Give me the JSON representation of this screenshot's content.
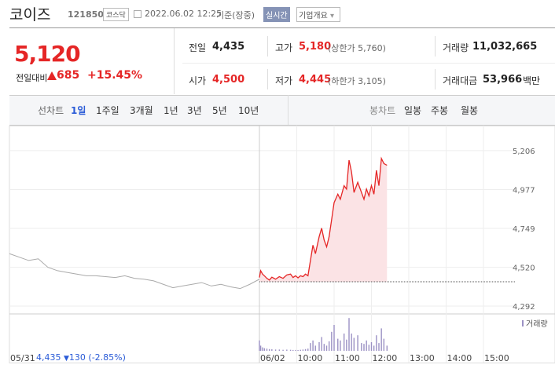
{
  "header": {
    "name": "코이즈",
    "code": "121850",
    "market": "코스닥",
    "datetime": "2022.06.02 12:25",
    "basis": "기준(장중)",
    "realtime": "실시간",
    "company": "기업개요"
  },
  "quote": {
    "price": "5,120",
    "change_label": "전일대비",
    "change": "685",
    "rate": "+15.45%"
  },
  "info": [
    {
      "label": "전일",
      "value": "4,435"
    },
    {
      "label": "고가",
      "value": "5,180",
      "note": "(상한가 5,760)"
    },
    {
      "label": "거래량",
      "value": "11,032,665"
    },
    {
      "label": "시가",
      "value": "4,500"
    },
    {
      "label": "저가",
      "value": "4,445",
      "note": "(하한가 3,105)"
    },
    {
      "label": "거래대금",
      "value": "53,966",
      "note": "백만"
    }
  ],
  "tabs": {
    "line_label": "선차트",
    "line": [
      "1일",
      "1주일",
      "3개월",
      "1년",
      "3년",
      "5년",
      "10년"
    ],
    "candle_label": "봉차트",
    "candle": [
      "일봉",
      "주봉",
      "월봉"
    ]
  },
  "footer": {
    "price": "4,435",
    "change": "130",
    "rate": "(-2.85%)"
  },
  "chart_data": {
    "type": "line",
    "xlim": [
      0,
      1170
    ],
    "ylim": [
      4255,
      5298
    ],
    "yticks": [
      {
        "value": 5206,
        "label": "5,206"
      },
      {
        "value": 4977,
        "label": "4,977"
      },
      {
        "value": 4749,
        "label": "4,749"
      },
      {
        "value": 4520,
        "label": "4,520"
      },
      {
        "value": 4292,
        "label": "4,292"
      }
    ],
    "xticks": [
      {
        "value": 0,
        "label": "05/31"
      },
      {
        "value": 780,
        "label": "06/02"
      },
      {
        "value": 840,
        "label": "10:00"
      },
      {
        "value": 900,
        "label": "11:00"
      },
      {
        "value": 960,
        "label": "12:00"
      },
      {
        "value": 1020,
        "label": "13:00"
      },
      {
        "value": 1080,
        "label": "14:00"
      },
      {
        "value": 1140,
        "label": "15:00"
      }
    ],
    "previous_close": 4435,
    "volume_label": "거래량",
    "vlim": [
      0,
      400000
    ],
    "series": [
      {
        "color": "#aaaaaa",
        "x": [
          0,
          30,
          60,
          90,
          120,
          150,
          180,
          210,
          240,
          270,
          300,
          330,
          360,
          390,
          420,
          450,
          480,
          510,
          540,
          570,
          600,
          630,
          660,
          690,
          720,
          750,
          780
        ],
        "values": [
          4600,
          4580,
          4560,
          4570,
          4520,
          4500,
          4490,
          4480,
          4470,
          4470,
          4465,
          4460,
          4470,
          4455,
          4450,
          4440,
          4420,
          4400,
          4410,
          4420,
          4430,
          4410,
          4420,
          4405,
          4395,
          4420,
          4450
        ]
      },
      {
        "color": "#e52626",
        "fill": "#fbe3e5",
        "volume_color": "#9b91c4",
        "x": [
          780,
          782,
          785,
          788,
          792,
          796,
          800,
          806,
          812,
          818,
          824,
          830,
          834,
          838,
          842,
          846,
          850,
          854,
          858,
          862,
          866,
          870,
          876,
          880,
          884,
          888,
          892,
          896,
          900,
          906,
          910,
          916,
          920,
          924,
          928,
          932,
          938,
          944,
          948,
          952,
          956,
          960,
          964,
          968,
          972,
          976,
          980,
          985
        ],
        "values": [
          4460,
          4500,
          4480,
          4470,
          4455,
          4445,
          4462,
          4450,
          4465,
          4455,
          4475,
          4480,
          4460,
          4470,
          4458,
          4470,
          4465,
          4480,
          4470,
          4560,
          4650,
          4600,
          4700,
          4750,
          4680,
          4640,
          4700,
          4800,
          4900,
          4950,
          4920,
          5000,
          4980,
          5150,
          5080,
          4960,
          5020,
          4960,
          4920,
          4980,
          4940,
          5000,
          4950,
          5090,
          5000,
          5160,
          5130,
          5120
        ],
        "volumes": [
          120000,
          60000,
          40000,
          30000,
          25000,
          20000,
          18000,
          15000,
          15000,
          12000,
          14000,
          12000,
          10000,
          10000,
          9000,
          12000,
          15000,
          20000,
          25000,
          90000,
          120000,
          60000,
          100000,
          160000,
          80000,
          60000,
          110000,
          220000,
          300000,
          140000,
          120000,
          200000,
          130000,
          380000,
          200000,
          150000,
          180000,
          90000,
          80000,
          120000,
          70000,
          100000,
          60000,
          180000,
          90000,
          260000,
          140000,
          60000
        ]
      }
    ]
  }
}
